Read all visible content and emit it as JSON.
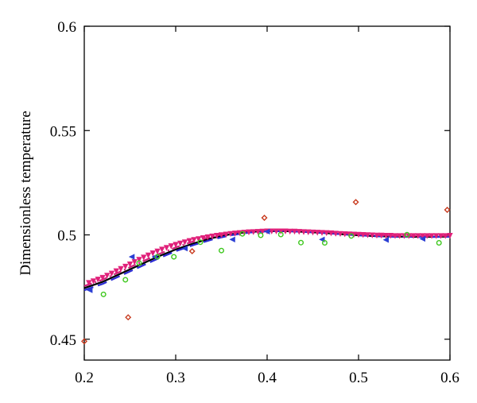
{
  "chart_data": {
    "type": "scatter",
    "title": "",
    "xlabel": "",
    "ylabel": "Dimensionless temperature",
    "xlim": [
      0.2,
      0.6
    ],
    "ylim": [
      0.44,
      0.6
    ],
    "grid": false,
    "legend": "none",
    "x_ticks": [
      {
        "value": 0.2,
        "label": "0.2"
      },
      {
        "value": 0.3,
        "label": "0.3"
      },
      {
        "value": 0.4,
        "label": "0.4"
      },
      {
        "value": 0.5,
        "label": "0.5"
      },
      {
        "value": 0.6,
        "label": "0.6"
      }
    ],
    "y_ticks": [
      {
        "value": 0.45,
        "label": "0.45"
      },
      {
        "value": 0.5,
        "label": "0.5"
      },
      {
        "value": 0.55,
        "label": "0.55"
      },
      {
        "value": 0.6,
        "label": "0.6"
      }
    ],
    "series": [
      {
        "style": "line",
        "dash": "solid",
        "color": "#000000",
        "marker": "none",
        "x": [
          0.2,
          0.22,
          0.24,
          0.26,
          0.28,
          0.3,
          0.32,
          0.34,
          0.36,
          0.38,
          0.4,
          0.42,
          0.44,
          0.46,
          0.48,
          0.5,
          0.52,
          0.54,
          0.56,
          0.58,
          0.6
        ],
        "y": [
          0.4745,
          0.4775,
          0.4815,
          0.4855,
          0.4895,
          0.493,
          0.496,
          0.4985,
          0.5003,
          0.5014,
          0.5018,
          0.5018,
          0.5015,
          0.501,
          0.5004,
          0.4998,
          0.4994,
          0.4992,
          0.4991,
          0.4991,
          0.4992
        ]
      },
      {
        "style": "line",
        "dash": "long-dash",
        "color": "#2b2bd4",
        "marker": "none",
        "x": [
          0.2,
          0.22,
          0.24,
          0.26,
          0.28,
          0.3,
          0.32,
          0.34,
          0.36,
          0.38,
          0.4,
          0.42,
          0.44,
          0.46,
          0.48,
          0.5,
          0.52,
          0.54,
          0.56,
          0.58,
          0.6
        ],
        "y": [
          0.4735,
          0.4765,
          0.4805,
          0.4845,
          0.4885,
          0.4922,
          0.4952,
          0.4978,
          0.4998,
          0.5011,
          0.5017,
          0.5018,
          0.5015,
          0.501,
          0.5004,
          0.4998,
          0.4994,
          0.4991,
          0.499,
          0.499,
          0.4991
        ]
      },
      {
        "style": "line",
        "dash": "dash-dot",
        "color": "#d0207a",
        "marker": "none",
        "x": [
          0.2,
          0.22,
          0.24,
          0.26,
          0.28,
          0.3,
          0.32,
          0.34,
          0.36,
          0.38,
          0.4,
          0.42,
          0.44,
          0.46,
          0.48,
          0.5,
          0.52,
          0.54,
          0.56,
          0.58,
          0.6
        ],
        "y": [
          0.4755,
          0.4785,
          0.4825,
          0.4865,
          0.4905,
          0.494,
          0.497,
          0.4993,
          0.501,
          0.502,
          0.5024,
          0.5024,
          0.5021,
          0.5016,
          0.501,
          0.5004,
          0.4999,
          0.4996,
          0.4995,
          0.4995,
          0.4996
        ]
      },
      {
        "style": "markers",
        "marker": "triangle-down",
        "color": "#e0207a",
        "x": [
          0.205,
          0.21,
          0.215,
          0.22,
          0.225,
          0.23,
          0.235,
          0.24,
          0.245,
          0.25,
          0.255,
          0.26,
          0.265,
          0.27,
          0.275,
          0.28,
          0.285,
          0.29,
          0.295,
          0.3,
          0.305,
          0.31,
          0.315,
          0.32,
          0.325,
          0.33,
          0.335,
          0.34,
          0.345,
          0.35,
          0.355,
          0.36,
          0.365,
          0.37,
          0.375,
          0.38,
          0.385,
          0.39,
          0.395,
          0.4,
          0.405,
          0.41,
          0.415,
          0.42,
          0.425,
          0.43,
          0.435,
          0.44,
          0.445,
          0.45,
          0.455,
          0.46,
          0.465,
          0.47,
          0.475,
          0.48,
          0.485,
          0.49,
          0.495,
          0.5,
          0.505,
          0.51,
          0.515,
          0.52,
          0.525,
          0.53,
          0.535,
          0.54,
          0.545,
          0.55,
          0.555,
          0.56,
          0.565,
          0.57,
          0.575,
          0.58,
          0.585,
          0.59,
          0.595,
          0.6
        ],
        "y": [
          0.477,
          0.4778,
          0.4786,
          0.4795,
          0.4805,
          0.4815,
          0.4826,
          0.4837,
          0.4848,
          0.4859,
          0.487,
          0.4881,
          0.4892,
          0.4902,
          0.4912,
          0.4921,
          0.493,
          0.4938,
          0.4946,
          0.4953,
          0.4959,
          0.4965,
          0.4971,
          0.4976,
          0.498,
          0.4985,
          0.4989,
          0.4993,
          0.4996,
          0.4999,
          0.5002,
          0.5005,
          0.5007,
          0.5009,
          0.5011,
          0.5013,
          0.5014,
          0.5015,
          0.5016,
          0.5017,
          0.5017,
          0.5017,
          0.5017,
          0.5017,
          0.5016,
          0.5016,
          0.5015,
          0.5014,
          0.5013,
          0.5012,
          0.5011,
          0.501,
          0.5009,
          0.5008,
          0.5006,
          0.5005,
          0.5004,
          0.5003,
          0.5002,
          0.5001,
          0.5,
          0.4999,
          0.4998,
          0.4997,
          0.4997,
          0.4996,
          0.4996,
          0.4995,
          0.4995,
          0.4995,
          0.4995,
          0.4995,
          0.4995,
          0.4995,
          0.4995,
          0.4995,
          0.4995,
          0.4995,
          0.4995,
          0.4996
        ]
      },
      {
        "style": "markers",
        "marker": "triangle-left",
        "color": "#2b3fd4",
        "x": [
          0.206,
          0.252,
          0.277,
          0.31,
          0.362,
          0.4,
          0.46,
          0.53,
          0.57
        ],
        "y": [
          0.4735,
          0.4895,
          0.4895,
          0.4935,
          0.4978,
          0.5016,
          0.4978,
          0.4976,
          0.4981
        ]
      },
      {
        "style": "markers",
        "marker": "circle",
        "color": "#3ec81e",
        "x": [
          0.221,
          0.245,
          0.26,
          0.28,
          0.298,
          0.327,
          0.35,
          0.373,
          0.393,
          0.415,
          0.437,
          0.463,
          0.492,
          0.553,
          0.588
        ],
        "y": [
          0.4715,
          0.4785,
          0.4865,
          0.4895,
          0.4895,
          0.4965,
          0.4925,
          0.5005,
          0.4998,
          0.5002,
          0.4963,
          0.4962,
          0.4995,
          0.5001,
          0.4962
        ]
      },
      {
        "style": "markers",
        "marker": "diamond",
        "color": "#c83a1e",
        "x": [
          0.2,
          0.248,
          0.318,
          0.397,
          0.497,
          0.597
        ],
        "y": [
          0.449,
          0.4605,
          0.4922,
          0.5082,
          0.5157,
          0.512
        ]
      }
    ]
  }
}
